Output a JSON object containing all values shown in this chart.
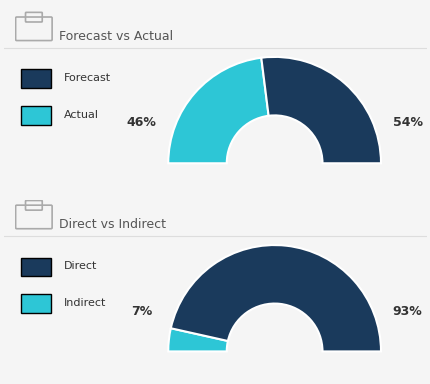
{
  "chart1": {
    "title": "Forecast vs Actual",
    "legend": [
      {
        "label": "Forecast",
        "color": "#1a3a5c"
      },
      {
        "label": "Actual",
        "color": "#2dc6d6"
      }
    ],
    "slices": [
      {
        "label": "Actual",
        "value": 46,
        "color": "#2dc6d6"
      },
      {
        "label": "Forecast",
        "value": 54,
        "color": "#1a3a5c"
      }
    ],
    "pct_left": "46%",
    "pct_right": "54%"
  },
  "chart2": {
    "title": "Direct vs Indirect",
    "legend": [
      {
        "label": "Direct",
        "color": "#1a3a5c"
      },
      {
        "label": "Indirect",
        "color": "#2dc6d6"
      }
    ],
    "slices": [
      {
        "label": "Indirect",
        "value": 7,
        "color": "#2dc6d6"
      },
      {
        "label": "Direct",
        "value": 93,
        "color": "#1a3a5c"
      }
    ],
    "pct_left": "7%",
    "pct_right": "93%"
  },
  "bg_color": "#f5f5f5",
  "panel_color": "#ffffff",
  "title_color": "#555555",
  "label_color": "#333333",
  "pct_color": "#333333",
  "divider_color": "#dddddd",
  "title_fontsize": 9,
  "legend_fontsize": 8,
  "pct_fontsize": 9
}
